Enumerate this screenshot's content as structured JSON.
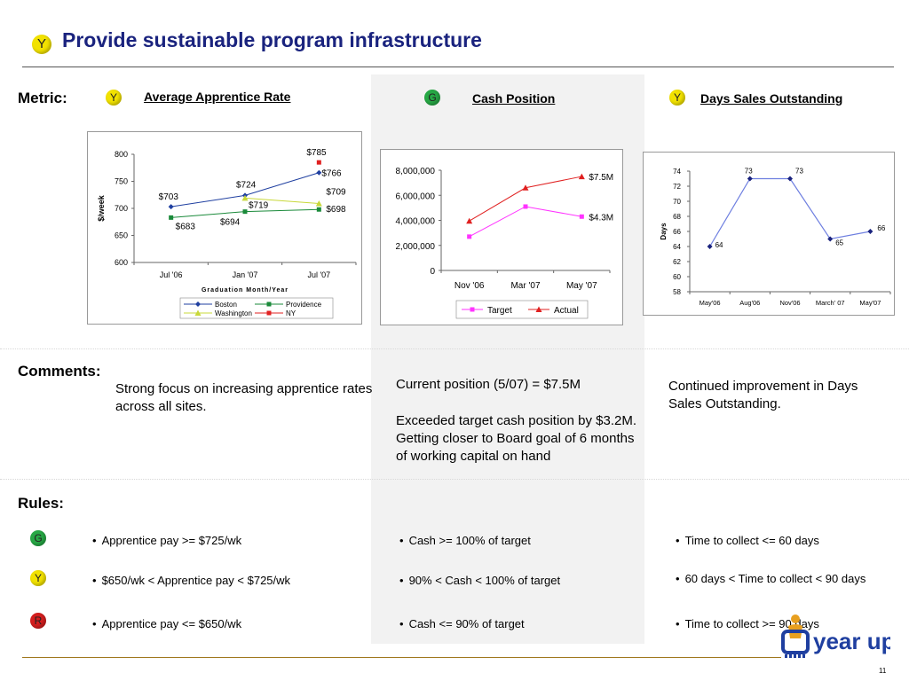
{
  "header": {
    "status": "Y",
    "title": "Provide sustainable program infrastructure"
  },
  "labels": {
    "metric": "Metric:",
    "comments": "Comments:",
    "rules": "Rules:"
  },
  "metrics": [
    {
      "status": "Y",
      "title": "Average Apprentice Rate"
    },
    {
      "status": "G",
      "title": "Cash Position"
    },
    {
      "status": "Y",
      "title": "Days Sales Outstanding"
    }
  ],
  "chart_data": [
    {
      "type": "line",
      "ylabel": "$/week",
      "xlabel": "Graduation Month/Year",
      "categories": [
        "Jul '06",
        "Jan '07",
        "Jul '07"
      ],
      "ylim": [
        600,
        800
      ],
      "yticks": [
        "600",
        "650",
        "700",
        "750",
        "800"
      ],
      "series": [
        {
          "name": "Boston",
          "values": [
            703,
            724,
            766
          ],
          "labels": [
            "$703",
            "$724",
            "$766"
          ],
          "color": "#1f3fa0"
        },
        {
          "name": "Providence",
          "values": [
            683,
            694,
            698
          ],
          "labels": [
            "$683",
            "$694",
            "$698"
          ],
          "color": "#1a8a3a"
        },
        {
          "name": "Washington",
          "values": [
            null,
            719,
            709
          ],
          "labels": [
            "",
            "$719",
            "$709"
          ],
          "color": "#c8d83a"
        },
        {
          "name": "NY",
          "values": [
            null,
            null,
            785
          ],
          "labels": [
            "",
            "",
            "$785"
          ],
          "color": "#e02020"
        }
      ],
      "legend": "bottom"
    },
    {
      "type": "line",
      "categories": [
        "Nov '06",
        "Mar '07",
        "May '07"
      ],
      "ylim": [
        0,
        8000000
      ],
      "yticks": [
        "0",
        "2,000,000",
        "4,000,000",
        "6,000,000",
        "8,000,000"
      ],
      "series": [
        {
          "name": "Target",
          "values": [
            2700000,
            5100000,
            4300000
          ],
          "end_label": "$4.3M",
          "color": "#ff33ff"
        },
        {
          "name": "Actual",
          "values": [
            3950000,
            6600000,
            7500000
          ],
          "end_label": "$7.5M",
          "color": "#e02020"
        }
      ],
      "legend": "bottom"
    },
    {
      "type": "line",
      "ylabel": "Days",
      "categories": [
        "May'06",
        "Aug'06",
        "Nov'06",
        "March' 07",
        "May'07"
      ],
      "ylim": [
        58,
        74
      ],
      "yticks": [
        "58",
        "60",
        "62",
        "64",
        "66",
        "68",
        "70",
        "72",
        "74"
      ],
      "series": [
        {
          "name": "",
          "values": [
            64,
            73,
            73,
            65,
            66
          ],
          "labels": [
            "64",
            "73",
            "73",
            "65",
            "66"
          ],
          "color": "#6e7fe0"
        }
      ]
    }
  ],
  "comments": {
    "col1": "Strong focus on increasing apprentice rates across all sites.",
    "col2a": "Current position (5/07) = $7.5M",
    "col2b": "Exceeded target cash position by $3.2M. Getting closer to Board goal of 6 months of working capital on hand",
    "col3": "Continued improvement in Days Sales Outstanding."
  },
  "rules": [
    {
      "status": "G",
      "items": [
        "Apprentice pay >= $725/wk",
        "Cash >= 100% of target",
        "Time to collect <= 60 days"
      ]
    },
    {
      "status": "Y",
      "items": [
        "$650/wk < Apprentice pay < $725/wk",
        "90% < Cash < 100% of target",
        "60 days < Time to collect < 90 days"
      ]
    },
    {
      "status": "R",
      "items": [
        "Apprentice pay <= $650/wk",
        "Cash <= 90% of target",
        "Time to collect >= 90 days"
      ]
    }
  ],
  "footer": {
    "logo": "year up",
    "page": "11"
  },
  "colors": {
    "title": "#1a237e",
    "green": "#27a845",
    "yellow": "#f2e200",
    "red": "#d41e1e"
  }
}
